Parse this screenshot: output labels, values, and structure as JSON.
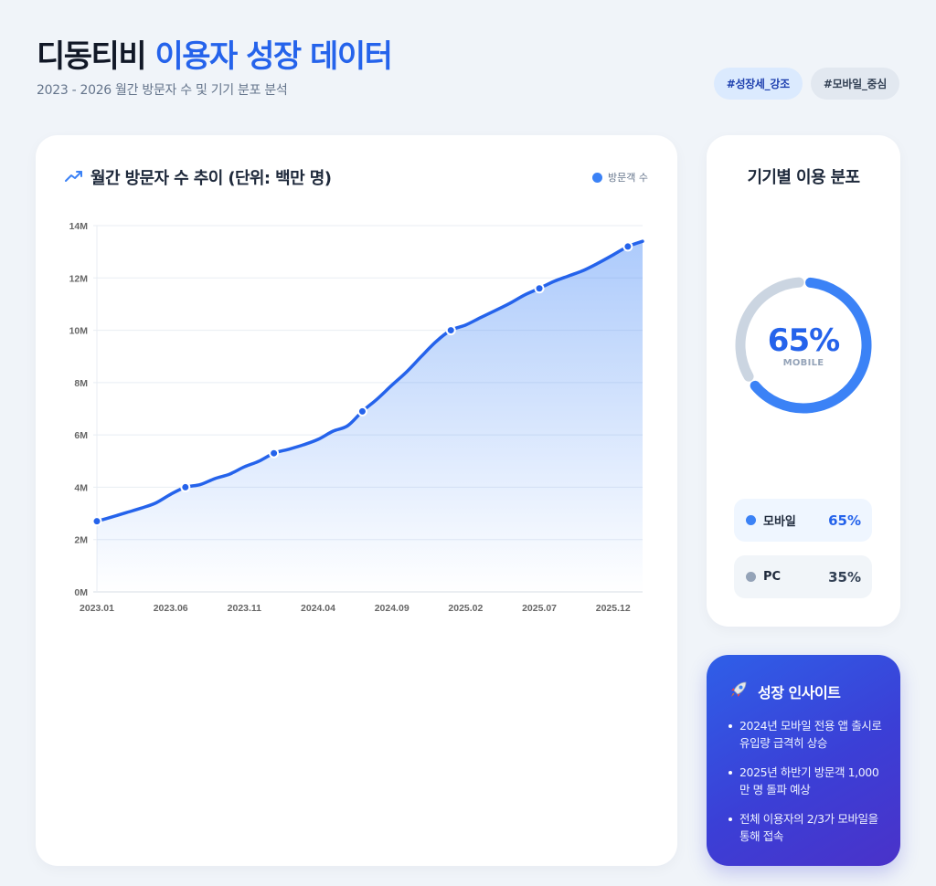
{
  "header": {
    "title_brand": "디동티비",
    "title_accent": "이용자 성장 데이터",
    "subtitle": "2023 - 2026 월간 방문자 수 및 기기 분포 분석"
  },
  "tags": [
    {
      "label": "#성장세_강조"
    },
    {
      "label": "#모바일_중심"
    }
  ],
  "chart_card": {
    "icon": "trending-up-icon",
    "title": "월간 방문자 수 추이 (단위: 백만 명)",
    "legend_label": "방문객 수"
  },
  "device_card": {
    "title": "기기별 이용 분포",
    "center_value": "65%",
    "center_label": "MOBILE",
    "items": [
      {
        "label": "모바일",
        "value": "65%",
        "color": "#3b82f6",
        "value_color": "#2563eb"
      },
      {
        "label": "PC",
        "value": "35%",
        "color": "#94a3b8",
        "value_color": "#334155"
      }
    ]
  },
  "insight_card": {
    "icon": "rocket-icon",
    "title": "성장 인사이트",
    "items": [
      "2024년 모바일 전용 앱 출시로 유입량 급격히 상승",
      "2025년 하반기 방문객 1,000만 명 돌파 예상",
      "전체 이용자의 2/3가 모바일을 통해 접속"
    ]
  },
  "colors": {
    "accent": "#2563eb",
    "line": "#2563eb",
    "mobile": "#3b82f6",
    "pc": "#cbd5e1",
    "background": "#f0f4f9"
  },
  "chart_data": [
    {
      "type": "area",
      "title": "월간 방문자 수 추이 (단위: 백만 명)",
      "xlabel": "",
      "ylabel": "",
      "ylim": [
        0,
        14
      ],
      "y_ticks": [
        "0M",
        "2M",
        "4M",
        "6M",
        "8M",
        "10M",
        "12M",
        "14M"
      ],
      "x_tick_labels": [
        "2023.01",
        "2023.06",
        "2023.11",
        "2024.04",
        "2024.09",
        "2025.02",
        "2025.07",
        "2025.12"
      ],
      "grid": true,
      "legend": {
        "position": "top-right",
        "entries": [
          "방문객 수"
        ]
      },
      "x": [
        "2023.01",
        "2023.02",
        "2023.03",
        "2023.04",
        "2023.05",
        "2023.06",
        "2023.07",
        "2023.08",
        "2023.09",
        "2023.10",
        "2023.11",
        "2023.12",
        "2024.01",
        "2024.02",
        "2024.03",
        "2024.04",
        "2024.05",
        "2024.06",
        "2024.07",
        "2024.08",
        "2024.09",
        "2024.10",
        "2024.11",
        "2024.12",
        "2025.01",
        "2025.02",
        "2025.03",
        "2025.04",
        "2025.05",
        "2025.06",
        "2025.07",
        "2025.08",
        "2025.09",
        "2025.10",
        "2025.11",
        "2025.12",
        "2026.01",
        "2026.02"
      ],
      "series": [
        {
          "name": "방문객 수",
          "unit": "M",
          "values": [
            2.7,
            2.86,
            3.03,
            3.2,
            3.4,
            3.73,
            4.0,
            4.1,
            4.33,
            4.5,
            4.78,
            5.0,
            5.3,
            5.45,
            5.62,
            5.83,
            6.14,
            6.35,
            6.9,
            7.37,
            7.9,
            8.41,
            9.0,
            9.57,
            10.0,
            10.2,
            10.48,
            10.75,
            11.03,
            11.35,
            11.6,
            11.87,
            12.08,
            12.29,
            12.57,
            12.88,
            13.2,
            13.4
          ],
          "marker_every": 6
        }
      ]
    },
    {
      "type": "pie",
      "title": "기기별 이용 분포",
      "donut": true,
      "categories": [
        "모바일",
        "PC"
      ],
      "values": [
        65,
        35
      ],
      "center_text": "65% MOBILE"
    }
  ]
}
